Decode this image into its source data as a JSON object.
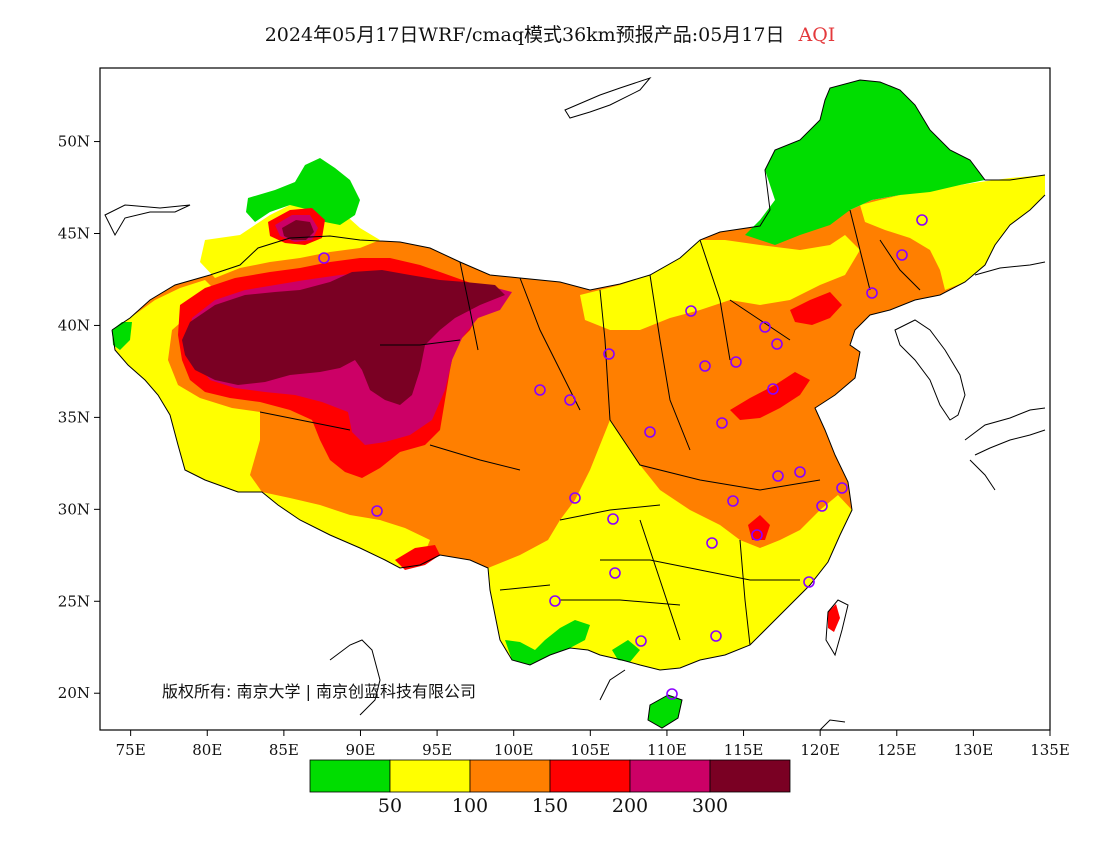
{
  "title": {
    "text": "2024年05月17日WRF/cmaq模式36km预报产品:05月17日",
    "variable": "AQI",
    "variable_color": "#e4393c"
  },
  "map": {
    "lon_range": [
      73,
      135
    ],
    "lat_range": [
      18,
      54
    ],
    "lon_ticks": [
      "75E",
      "80E",
      "85E",
      "90E",
      "95E",
      "100E",
      "105E",
      "110E",
      "115E",
      "120E",
      "125E",
      "130E",
      "135E"
    ],
    "lat_ticks": [
      "20N",
      "25N",
      "30N",
      "35N",
      "40N",
      "45N",
      "50N"
    ],
    "copyright": "版权所有: 南京大学 | 南京创蓝科技有限公司"
  },
  "legend": {
    "colors": [
      "#00dd00",
      "#ffff00",
      "#ff7f00",
      "#ff0000",
      "#cc0066",
      "#7a0023"
    ],
    "labels": [
      "50",
      "100",
      "150",
      "200",
      "300"
    ]
  },
  "colors": {
    "good": "#00dd00",
    "moderate": "#ffff00",
    "unhealthy_sensitive": "#ff7f00",
    "unhealthy": "#ff0000",
    "very_unhealthy": "#cc0066",
    "hazardous": "#7a0023",
    "station_marker": "#8b00ff"
  }
}
